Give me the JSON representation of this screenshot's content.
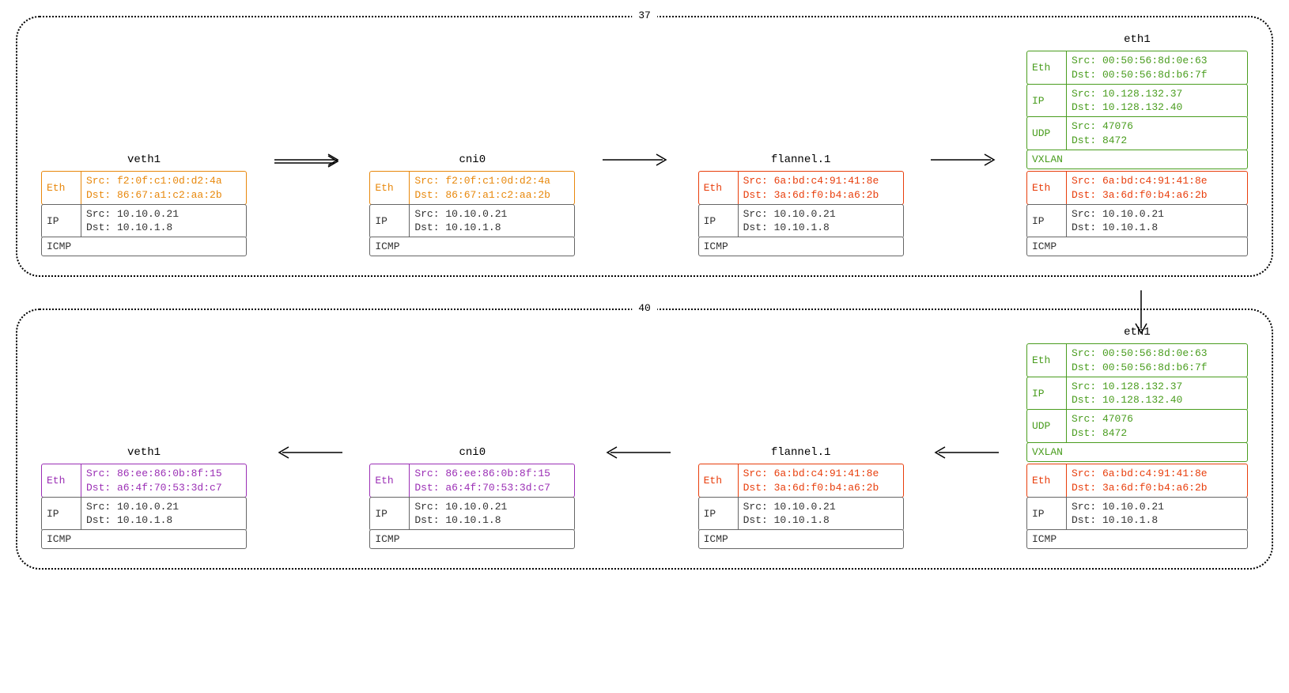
{
  "colors": {
    "orange": "#e8880c",
    "gray": "#666666",
    "red": "#e83e0c",
    "green": "#4a9d1f",
    "purple": "#9b2fb5",
    "bg": "#ffffff"
  },
  "nodes": [
    {
      "id": "37",
      "direction": "right",
      "interfaces": [
        {
          "name": "veth1",
          "layers": [
            {
              "tag": "Eth",
              "color": "orange",
              "src": "f2:0f:c1:0d:d2:4a",
              "dst": "86:67:a1:c2:aa:2b"
            },
            {
              "tag": "IP",
              "color": "gray",
              "src": "10.10.0.21",
              "dst": "10.10.1.8"
            },
            {
              "tag": "ICMP",
              "color": "gray",
              "single": true
            }
          ]
        },
        {
          "name": "cni0",
          "layers": [
            {
              "tag": "Eth",
              "color": "orange",
              "src": "f2:0f:c1:0d:d2:4a",
              "dst": "86:67:a1:c2:aa:2b"
            },
            {
              "tag": "IP",
              "color": "gray",
              "src": "10.10.0.21",
              "dst": "10.10.1.8"
            },
            {
              "tag": "ICMP",
              "color": "gray",
              "single": true
            }
          ]
        },
        {
          "name": "flannel.1",
          "layers": [
            {
              "tag": "Eth",
              "color": "red",
              "src": "6a:bd:c4:91:41:8e",
              "dst": "3a:6d:f0:b4:a6:2b"
            },
            {
              "tag": "IP",
              "color": "gray",
              "src": "10.10.0.21",
              "dst": "10.10.1.8"
            },
            {
              "tag": "ICMP",
              "color": "gray",
              "single": true
            }
          ]
        },
        {
          "name": "eth1",
          "encap": [
            {
              "tag": "Eth",
              "color": "green",
              "src": "00:50:56:8d:0e:63",
              "dst": "00:50:56:8d:b6:7f"
            },
            {
              "tag": "IP",
              "color": "green",
              "src": "10.128.132.37",
              "dst": "10.128.132.40"
            },
            {
              "tag": "UDP",
              "color": "green",
              "src": "47076",
              "dst": "8472"
            },
            {
              "tag": "VXLAN",
              "color": "green",
              "single": true
            }
          ],
          "layers": [
            {
              "tag": "Eth",
              "color": "red",
              "src": "6a:bd:c4:91:41:8e",
              "dst": "3a:6d:f0:b4:a6:2b"
            },
            {
              "tag": "IP",
              "color": "gray",
              "src": "10.10.0.21",
              "dst": "10.10.1.8"
            },
            {
              "tag": "ICMP",
              "color": "gray",
              "single": true
            }
          ]
        }
      ]
    },
    {
      "id": "40",
      "direction": "left",
      "interfaces": [
        {
          "name": "veth1",
          "layers": [
            {
              "tag": "Eth",
              "color": "purple",
              "src": "86:ee:86:0b:8f:15",
              "dst": "a6:4f:70:53:3d:c7"
            },
            {
              "tag": "IP",
              "color": "gray",
              "src": "10.10.0.21",
              "dst": "10.10.1.8"
            },
            {
              "tag": "ICMP",
              "color": "gray",
              "single": true
            }
          ]
        },
        {
          "name": "cni0",
          "layers": [
            {
              "tag": "Eth",
              "color": "purple",
              "src": "86:ee:86:0b:8f:15",
              "dst": "a6:4f:70:53:3d:c7"
            },
            {
              "tag": "IP",
              "color": "gray",
              "src": "10.10.0.21",
              "dst": "10.10.1.8"
            },
            {
              "tag": "ICMP",
              "color": "gray",
              "single": true
            }
          ]
        },
        {
          "name": "flannel.1",
          "layers": [
            {
              "tag": "Eth",
              "color": "red",
              "src": "6a:bd:c4:91:41:8e",
              "dst": "3a:6d:f0:b4:a6:2b"
            },
            {
              "tag": "IP",
              "color": "gray",
              "src": "10.10.0.21",
              "dst": "10.10.1.8"
            },
            {
              "tag": "ICMP",
              "color": "gray",
              "single": true
            }
          ]
        },
        {
          "name": "eth1",
          "encap": [
            {
              "tag": "Eth",
              "color": "green",
              "src": "00:50:56:8d:0e:63",
              "dst": "00:50:56:8d:b6:7f"
            },
            {
              "tag": "IP",
              "color": "green",
              "src": "10.128.132.37",
              "dst": "10.128.132.40"
            },
            {
              "tag": "UDP",
              "color": "green",
              "src": "47076",
              "dst": "8472"
            },
            {
              "tag": "VXLAN",
              "color": "green",
              "single": true
            }
          ],
          "layers": [
            {
              "tag": "Eth",
              "color": "red",
              "src": "6a:bd:c4:91:41:8e",
              "dst": "3a:6d:f0:b4:a6:2b"
            },
            {
              "tag": "IP",
              "color": "gray",
              "src": "10.10.0.21",
              "dst": "10.10.1.8"
            },
            {
              "tag": "ICMP",
              "color": "gray",
              "single": true
            }
          ]
        }
      ]
    }
  ],
  "labels": {
    "src_prefix": "Src: ",
    "dst_prefix": "Dst: "
  }
}
